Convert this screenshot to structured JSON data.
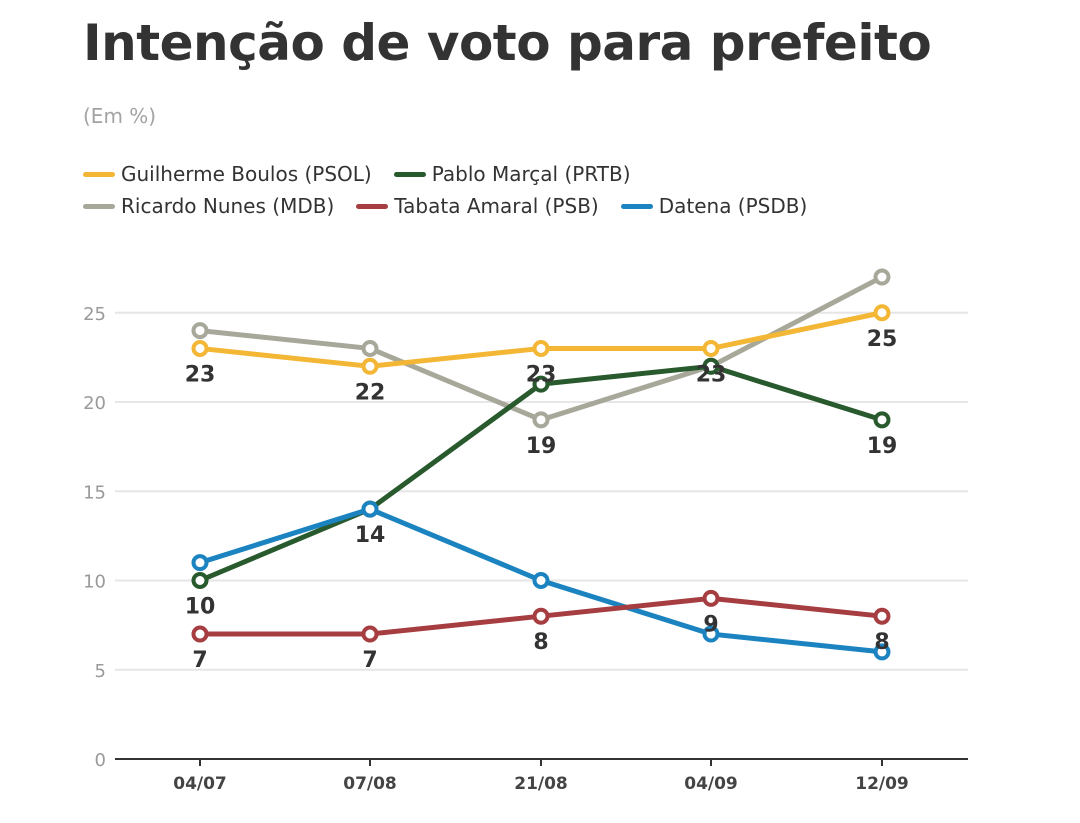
{
  "chart_data": {
    "type": "line",
    "title": "Intenção de voto para prefeito",
    "subtitle": "(Em %)",
    "categories": [
      "04/07",
      "07/08",
      "21/08",
      "04/09",
      "12/09"
    ],
    "yticks": [
      0,
      5,
      10,
      15,
      20,
      25
    ],
    "ylim": [
      0,
      27
    ],
    "grid": true,
    "legend_position": "top-left",
    "series": [
      {
        "name": "Ricardo Nunes (MDB)",
        "color": "#a8a89a",
        "values": [
          24,
          23,
          19,
          22,
          27
        ],
        "labels": [
          null,
          null,
          "19",
          null,
          null
        ],
        "label_pos": "below"
      },
      {
        "name": "Guilherme Boulos (PSOL)",
        "color": "#f3b635",
        "values": [
          23,
          22,
          23,
          23,
          25
        ],
        "labels": [
          "23",
          "22",
          "23",
          "23",
          "25"
        ],
        "label_pos": "below"
      },
      {
        "name": "Pablo Marçal (PRTB)",
        "color": "#285a2e",
        "values": [
          10,
          14,
          21,
          22,
          19
        ],
        "labels": [
          "10",
          "14",
          null,
          null,
          "19"
        ],
        "label_pos": "below"
      },
      {
        "name": "Datena (PSDB)",
        "color": "#1b83c0",
        "values": [
          11,
          14,
          10,
          7,
          6
        ],
        "labels": [
          null,
          null,
          null,
          null,
          null
        ],
        "label_pos": "below"
      },
      {
        "name": "Tabata Amaral (PSB)",
        "color": "#a63d40",
        "values": [
          7,
          7,
          8,
          9,
          8
        ],
        "labels": [
          "7",
          "7",
          "8",
          "9",
          "8"
        ],
        "label_pos": "below"
      }
    ],
    "legend_rows": [
      [
        "Guilherme Boulos (PSOL)",
        "Pablo Marçal (PRTB)"
      ],
      [
        "Ricardo Nunes (MDB)",
        "Tabata Amaral (PSB)",
        "Datena (PSDB)"
      ]
    ]
  }
}
